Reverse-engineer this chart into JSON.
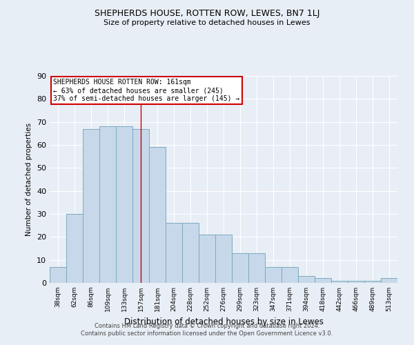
{
  "title1": "SHEPHERDS HOUSE, ROTTEN ROW, LEWES, BN7 1LJ",
  "title2": "Size of property relative to detached houses in Lewes",
  "xlabel": "Distribution of detached houses by size in Lewes",
  "ylabel": "Number of detached properties",
  "footnote1": "Contains HM Land Registry data © Crown copyright and database right 2024.",
  "footnote2": "Contains public sector information licensed under the Open Government Licence v3.0.",
  "categories": [
    "38sqm",
    "62sqm",
    "86sqm",
    "109sqm",
    "133sqm",
    "157sqm",
    "181sqm",
    "204sqm",
    "228sqm",
    "252sqm",
    "276sqm",
    "299sqm",
    "323sqm",
    "347sqm",
    "371sqm",
    "394sqm",
    "418sqm",
    "442sqm",
    "466sqm",
    "489sqm",
    "513sqm"
  ],
  "values": [
    7,
    30,
    67,
    68,
    68,
    67,
    59,
    26,
    26,
    21,
    21,
    13,
    13,
    7,
    7,
    3,
    2,
    1,
    1,
    1,
    2
  ],
  "bar_color": "#c8d8eb",
  "bar_edge_color": "#7aaabb",
  "bg_color": "#e8eef5",
  "plot_bg_color": "#e8eef5",
  "grid_color": "#ffffff",
  "annotation_box_color": "#ffffff",
  "annotation_box_edge": "#cc0000",
  "annotation_line_color": "#cc0000",
  "annotation_text_line1": "SHEPHERDS HOUSE ROTTEN ROW: 161sqm",
  "annotation_text_line2": "← 63% of detached houses are smaller (245)",
  "annotation_text_line3": "37% of semi-detached houses are larger (145) →",
  "property_line_x": 5.0,
  "ylim": [
    0,
    90
  ],
  "yticks": [
    0,
    10,
    20,
    30,
    40,
    50,
    60,
    70,
    80,
    90
  ]
}
